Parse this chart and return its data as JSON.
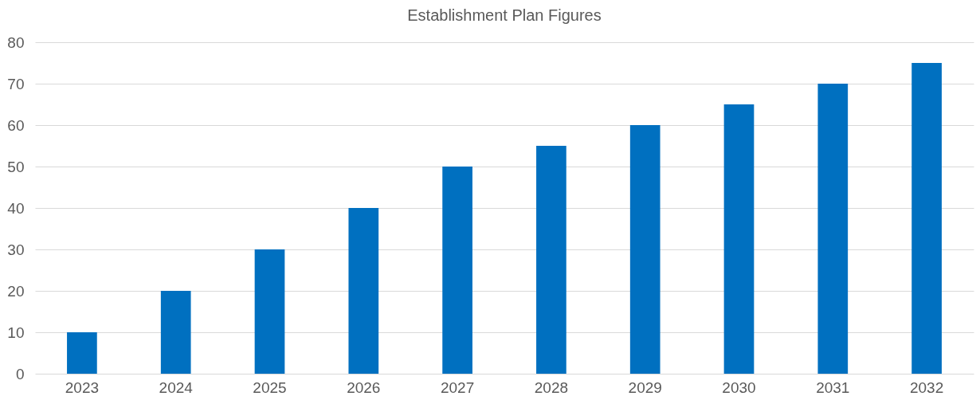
{
  "chart_data": {
    "type": "bar",
    "title": "Establishment Plan Figures",
    "categories": [
      "2023",
      "2024",
      "2025",
      "2026",
      "2027",
      "2028",
      "2029",
      "2030",
      "2031",
      "2032"
    ],
    "values": [
      10,
      20,
      30,
      40,
      50,
      55,
      60,
      65,
      70,
      75
    ],
    "color": "#0070c0",
    "ylim": [
      0,
      80
    ],
    "yticks": [
      0,
      10,
      20,
      30,
      40,
      50,
      60,
      70,
      80
    ],
    "grid": "y"
  }
}
